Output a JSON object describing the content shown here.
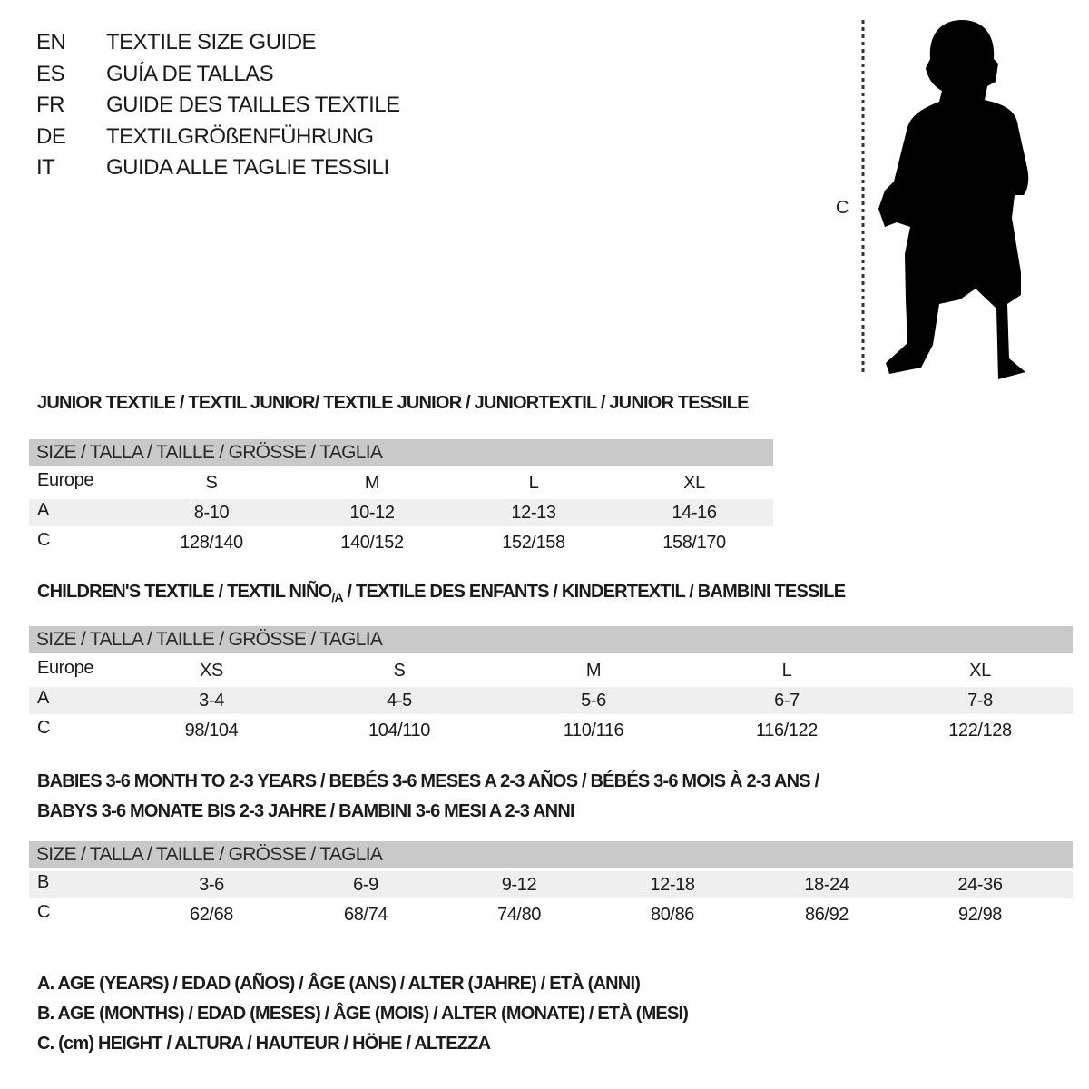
{
  "titles": [
    {
      "code": "EN",
      "text": "TEXTILE SIZE GUIDE"
    },
    {
      "code": "ES",
      "text": "GUÍA DE TALLAS"
    },
    {
      "code": "FR",
      "text": "GUIDE DES TAILLES TEXTILE"
    },
    {
      "code": "DE",
      "text": "TEXTILGRÖßENFÜHRUNG"
    },
    {
      "code": "IT",
      "text": "GUIDA ALLE TAGLIE TESSILI"
    }
  ],
  "figure": {
    "height_label": "C",
    "icon": "child-silhouette"
  },
  "size_header": "SIZE / TALLA / TAILLE / GRÖSSE / TAGLIA",
  "junior": {
    "title": "JUNIOR TEXTILE / TEXTIL JUNIOR/ TEXTILE JUNIOR / JUNIORTEXTIL / JUNIOR TESSILE",
    "rows": [
      {
        "label": "Europe",
        "values": [
          "S",
          "M",
          "L",
          "XL"
        ]
      },
      {
        "label": "A",
        "values": [
          "8-10",
          "10-12",
          "12-13",
          "14-16"
        ]
      },
      {
        "label": "C",
        "values": [
          "128/140",
          "140/152",
          "152/158",
          "158/170"
        ]
      }
    ]
  },
  "children": {
    "title_a": "CHILDREN'S TEXTILE / TEXTIL NIÑO",
    "title_sub": "/A",
    "title_b": " / TEXTILE DES ENFANTS / KINDERTEXTIL / BAMBINI TESSILE",
    "rows": [
      {
        "label": "Europe",
        "values": [
          "XS",
          "S",
          "M",
          "L",
          "XL"
        ]
      },
      {
        "label": "A",
        "values": [
          "3-4",
          "4-5",
          "5-6",
          "6-7",
          "7-8"
        ]
      },
      {
        "label": "C",
        "values": [
          "98/104",
          "104/110",
          "110/116",
          "116/122",
          "122/128"
        ]
      }
    ]
  },
  "babies": {
    "title_line1": "BABIES 3-6 MONTH TO 2-3 YEARS / BEBÉS 3-6 MESES A 2-3 AÑOS / BÉBÉS 3-6 MOIS À 2-3 ANS /",
    "title_line2": "BABYS 3-6 MONATE BIS 2-3 JAHRE / BAMBINI 3-6 MESI A 2-3 ANNI",
    "rows": [
      {
        "label": "B",
        "values": [
          "3-6",
          "6-9",
          "9-12",
          "12-18",
          "18-24",
          "24-36"
        ]
      },
      {
        "label": "C",
        "values": [
          "62/68",
          "68/74",
          "74/80",
          "80/86",
          "86/92",
          "92/98"
        ]
      }
    ]
  },
  "legend": [
    "A. AGE (YEARS) / EDAD (AÑOS) / ÂGE (ANS) / ALTER (JAHRE) / ETÀ (ANNI)",
    "B. AGE (MONTHS) / EDAD (MESES) / ÂGE (MOIS) / ALTER (MONATE) / ETÀ (MESI)",
    "C. (cm) HEIGHT / ALTURA / HAUTEUR / HÖHE / ALTEZZA"
  ],
  "colors": {
    "header_bg": "#c9c9c9",
    "stripe_bg": "#efefef",
    "text": "#1a1a1a"
  }
}
